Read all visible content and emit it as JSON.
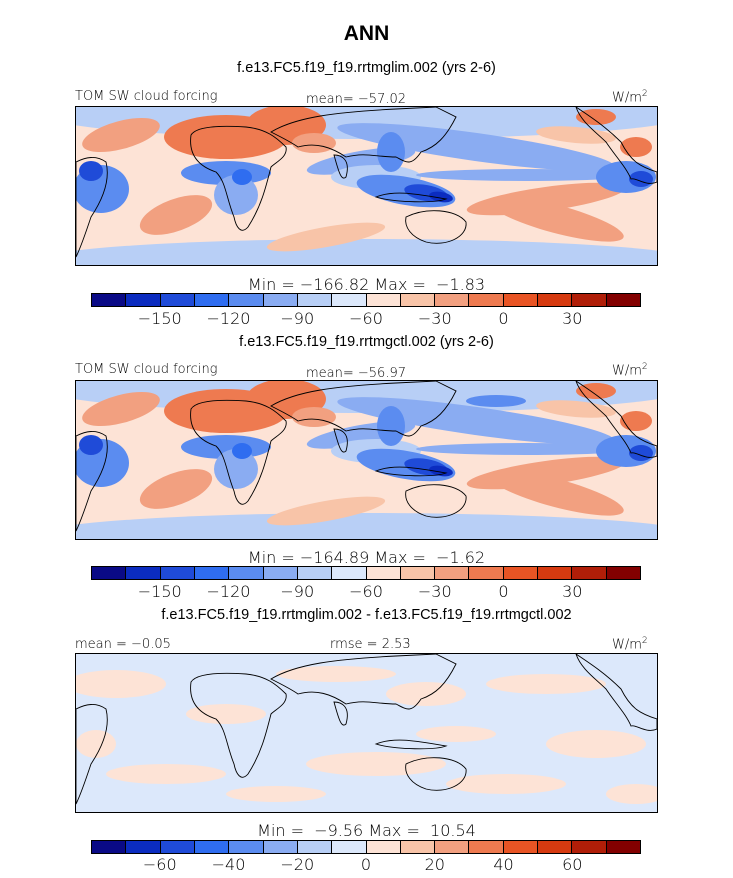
{
  "title": "ANN",
  "colors": {
    "scale": [
      "#0a0a86",
      "#0b2cc0",
      "#1f4bd8",
      "#2f6df0",
      "#5b8cf0",
      "#8aacf2",
      "#b8cff6",
      "#dce8fb",
      "#fde3d6",
      "#f8c4a8",
      "#f2a080",
      "#ee7a50",
      "#e85424",
      "#d63a10",
      "#b01e08",
      "#820000"
    ],
    "coast": "#000000"
  },
  "panels": [
    {
      "case": "f.e13.FC5.f19_f19.rrtmglim.002 (yrs 2-6)",
      "variable": "TOM SW cloud forcing",
      "mean": "mean= −57.02",
      "unit": "W/m",
      "unit_exp": "2",
      "minmax": "Min = −166.82 Max =  −1.83",
      "ticks": [
        "−150",
        "−120",
        "−90",
        "−60",
        "−30",
        "0",
        "30"
      ],
      "field": "control"
    },
    {
      "case": "f.e13.FC5.f19_f19.rrtmgctl.002 (yrs 2-6)",
      "variable": "TOM SW cloud forcing",
      "mean": "mean= −56.97",
      "unit": "W/m",
      "unit_exp": "2",
      "minmax": "Min = −164.89 Max =  −1.62",
      "ticks": [
        "−150",
        "−120",
        "−90",
        "−60",
        "−30",
        "0",
        "30"
      ],
      "field": "control"
    },
    {
      "case": "f.e13.FC5.f19_f19.rrtmglim.002 - f.e13.FC5.f19_f19.rrtmgctl.002",
      "mean": "mean = −0.05",
      "rmse": "rmse =  2.53",
      "unit": "W/m",
      "unit_exp": "2",
      "minmax": "Min =  −9.56 Max =  10.54",
      "ticks": [
        "−60",
        "−40",
        "−20",
        "0",
        "20",
        "40",
        "60"
      ],
      "field": "difference"
    }
  ]
}
